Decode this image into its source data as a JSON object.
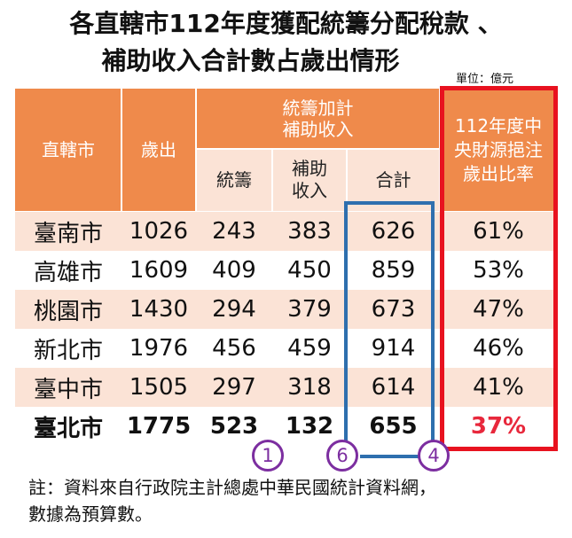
{
  "title": {
    "line1": "各直轄市112年度獲配統籌分配稅款 、",
    "line2": "補助收入合計數占歲出情形"
  },
  "unit": "單位：億元",
  "table": {
    "headers": {
      "city": "直轄市",
      "expenditure": "歲出",
      "group": "統籌加計\n補助收入",
      "ratio": "112年度中\n央財源挹注\n歲出比率",
      "sub_tongchou": "統籌",
      "sub_subsidy": "補助\n收入",
      "sub_total": "合計"
    },
    "rows": [
      {
        "city": "臺南市",
        "expenditure": "1026",
        "tongchou": "243",
        "subsidy": "383",
        "total": "626",
        "ratio": "61%"
      },
      {
        "city": "高雄市",
        "expenditure": "1609",
        "tongchou": "409",
        "subsidy": "450",
        "total": "859",
        "ratio": "53%"
      },
      {
        "city": "桃園市",
        "expenditure": "1430",
        "tongchou": "294",
        "subsidy": "379",
        "total": "673",
        "ratio": "47%"
      },
      {
        "city": "新北市",
        "expenditure": "1976",
        "tongchou": "456",
        "subsidy": "459",
        "total": "914",
        "ratio": "46%"
      },
      {
        "city": "臺中市",
        "expenditure": "1505",
        "tongchou": "297",
        "subsidy": "318",
        "total": "614",
        "ratio": "41%"
      },
      {
        "city": "臺北市",
        "expenditure": "1775",
        "tongchou": "523",
        "subsidy": "132",
        "total": "655",
        "ratio": "37%"
      }
    ]
  },
  "rank_markers": [
    "1",
    "6",
    "4"
  ],
  "colors": {
    "header_orange": "#ef8a4b",
    "row_tint": "#fbe3d6",
    "highlight_red": "#e8121f",
    "total_box_blue": "#2e6fae",
    "marker_purple": "#7c2ea0"
  },
  "note": {
    "line1": "註：資料來自行政院主計總處中華民國統計資料網，",
    "line2": "數據為預算數。"
  }
}
